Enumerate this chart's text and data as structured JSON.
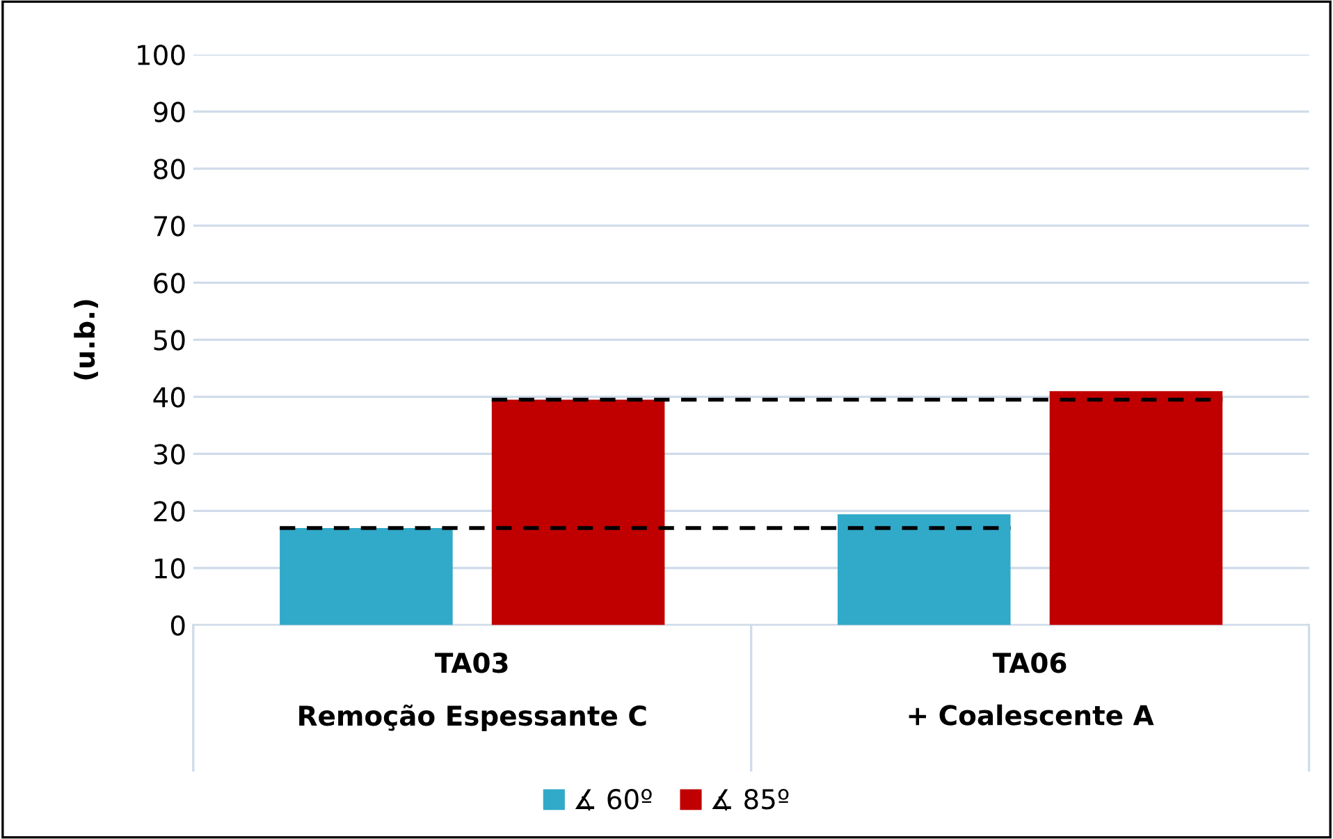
{
  "chart_data": {
    "type": "bar",
    "ylabel": "(u.b.)",
    "categories": [
      "TA03\nRemoção Espessante C",
      "TA06\n+ Coalescente A"
    ],
    "series": [
      {
        "name": "∡ 60º",
        "color": "#31a9c8",
        "values": [
          17,
          19.4
        ]
      },
      {
        "name": "∡ 85º",
        "color": "#c00000",
        "values": [
          39.5,
          41
        ]
      }
    ],
    "ylim": [
      0,
      100
    ],
    "yticks": [
      0,
      10,
      20,
      30,
      40,
      50,
      60,
      70,
      80,
      90,
      100
    ],
    "ref_lines": [
      {
        "axis": "y",
        "value": 17,
        "color": "#000000",
        "line_style": "dashed"
      },
      {
        "axis": "y",
        "value": 39.5,
        "color": "#000000",
        "line_style": "dashed"
      }
    ],
    "grid": "y",
    "legend": "bottom"
  }
}
